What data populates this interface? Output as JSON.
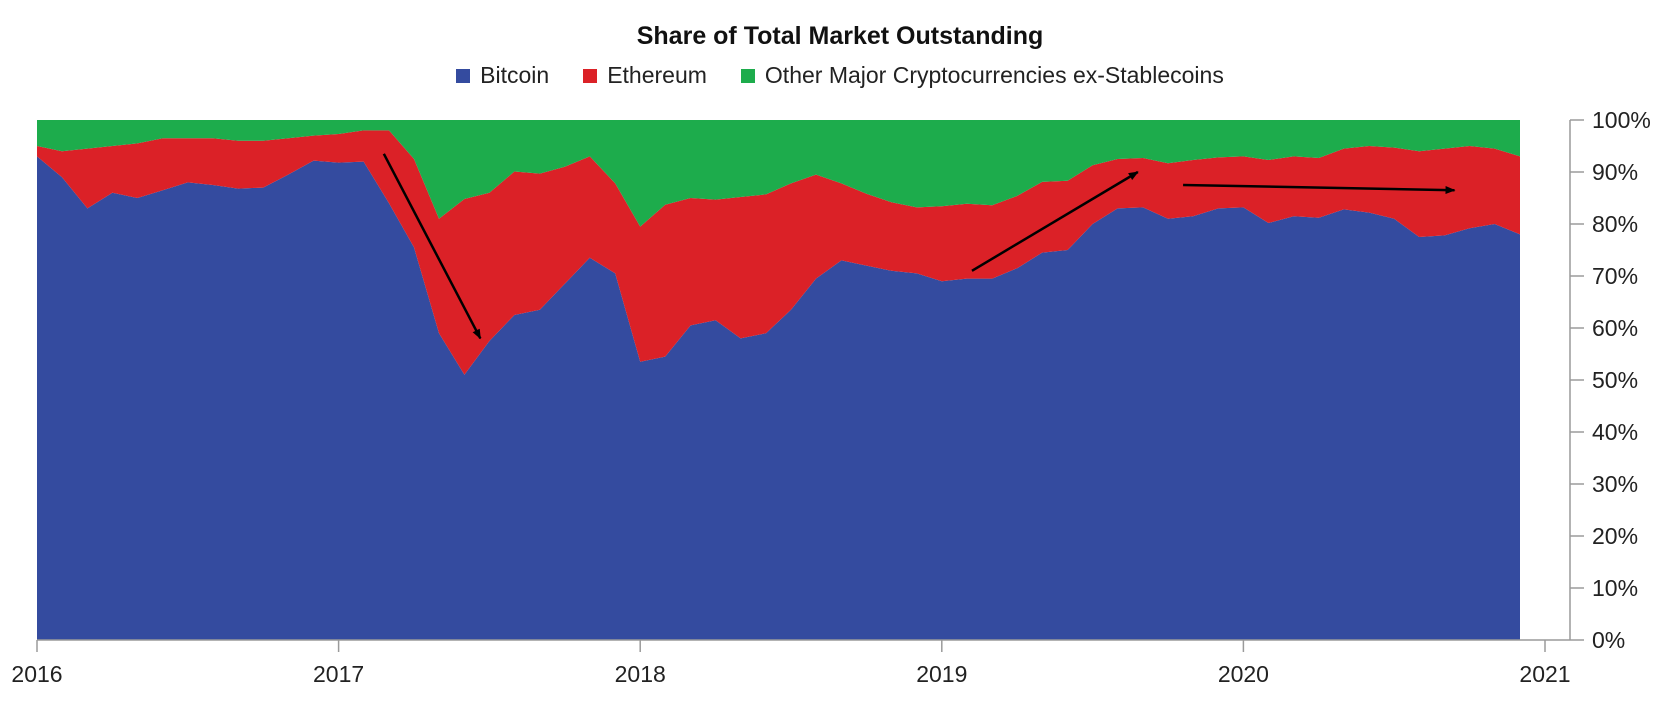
{
  "chart_data": {
    "type": "area",
    "stacked": true,
    "title": "Share of Total Market Outstanding",
    "xlabel": "",
    "ylabel": "",
    "xlim": [
      2016,
      2021
    ],
    "ylim": [
      0,
      100
    ],
    "x_ticks": [
      "2016",
      "2017",
      "2018",
      "2019",
      "2020",
      "2021"
    ],
    "y_ticks": [
      "0%",
      "10%",
      "20%",
      "30%",
      "40%",
      "50%",
      "60%",
      "70%",
      "80%",
      "90%",
      "100%"
    ],
    "y_axis_side": "right",
    "grid": false,
    "legend_position": "top-center",
    "x": [
      2016.0,
      2016.083,
      2016.167,
      2016.25,
      2016.333,
      2016.417,
      2016.5,
      2016.583,
      2016.667,
      2016.75,
      2016.833,
      2016.917,
      2017.0,
      2017.083,
      2017.167,
      2017.25,
      2017.333,
      2017.417,
      2017.5,
      2017.583,
      2017.667,
      2017.75,
      2017.833,
      2017.917,
      2018.0,
      2018.083,
      2018.167,
      2018.25,
      2018.333,
      2018.417,
      2018.5,
      2018.583,
      2018.667,
      2018.75,
      2018.833,
      2018.917,
      2019.0,
      2019.083,
      2019.167,
      2019.25,
      2019.333,
      2019.417,
      2019.5,
      2019.583,
      2019.667,
      2019.75,
      2019.833,
      2019.917,
      2020.0,
      2020.083,
      2020.167,
      2020.25,
      2020.333,
      2020.417,
      2020.5,
      2020.583,
      2020.667,
      2020.75,
      2020.833,
      2020.917
    ],
    "series": [
      {
        "name": "Bitcoin",
        "color": "#344b9f",
        "values": [
          93,
          89,
          83,
          86,
          85,
          86.5,
          88,
          87.5,
          86.8,
          87,
          89.5,
          92.2,
          91.8,
          92,
          84,
          75.5,
          59,
          51,
          57.5,
          62.5,
          63.5,
          68.5,
          73.5,
          70.5,
          53.5,
          54.5,
          60.5,
          61.5,
          58,
          59,
          63.5,
          69.5,
          73,
          72,
          71,
          70.5,
          69,
          69.5,
          69.5,
          71.5,
          74.5,
          75,
          80,
          83,
          83.2,
          81,
          81.5,
          83,
          83.2,
          80.2,
          81.5,
          81.2,
          82.8,
          82.2,
          81,
          77.5,
          77.8,
          79.2,
          80,
          78
        ]
      },
      {
        "name": "Ethereum",
        "color": "#db2127",
        "values": [
          2,
          5,
          11.5,
          9,
          10.5,
          10,
          8.5,
          9,
          9.2,
          9,
          7,
          4.8,
          5.5,
          6,
          14,
          17,
          22,
          33.8,
          28.5,
          27.6,
          26.2,
          22.5,
          19.5,
          17.3,
          26,
          29.2,
          24.5,
          23.2,
          27.2,
          26.7,
          24.3,
          20,
          14.8,
          13.8,
          13.2,
          12.7,
          14.4,
          14.4,
          14.1,
          13.9,
          13.6,
          13.3,
          11.3,
          9.5,
          9.5,
          10.7,
          10.8,
          9.8,
          9.8,
          12.1,
          11.5,
          11.5,
          11.7,
          12.8,
          13.7,
          16.5,
          16.7,
          15.8,
          14.5,
          15
        ]
      },
      {
        "name": "Other Major Cryptocurrencies ex-Stablecoins",
        "color": "#1dac4c",
        "values": [
          5,
          6,
          5.5,
          5,
          4.5,
          3.5,
          3.5,
          3.5,
          4,
          4,
          3.5,
          3,
          2.7,
          2,
          2,
          7.5,
          19,
          15.2,
          14,
          9.9,
          10.3,
          9,
          7,
          12.2,
          20.5,
          16.3,
          15,
          15.3,
          14.8,
          14.3,
          12.2,
          10.5,
          12.2,
          14.2,
          15.8,
          16.8,
          16.6,
          16.1,
          16.4,
          14.6,
          11.9,
          11.7,
          8.7,
          7.5,
          7.3,
          8.3,
          7.7,
          7.2,
          7,
          7.7,
          7,
          7.3,
          5.5,
          5,
          5.3,
          6,
          5.5,
          5,
          5.5,
          7
        ]
      }
    ],
    "annotations": [
      {
        "type": "arrow",
        "from": [
          2017.15,
          93.5
        ],
        "to": [
          2017.47,
          58
        ]
      },
      {
        "type": "arrow",
        "from": [
          2019.1,
          71
        ],
        "to": [
          2019.65,
          90
        ]
      },
      {
        "type": "arrow",
        "from": [
          2019.8,
          87.5
        ],
        "to": [
          2020.7,
          86.5
        ]
      }
    ]
  }
}
